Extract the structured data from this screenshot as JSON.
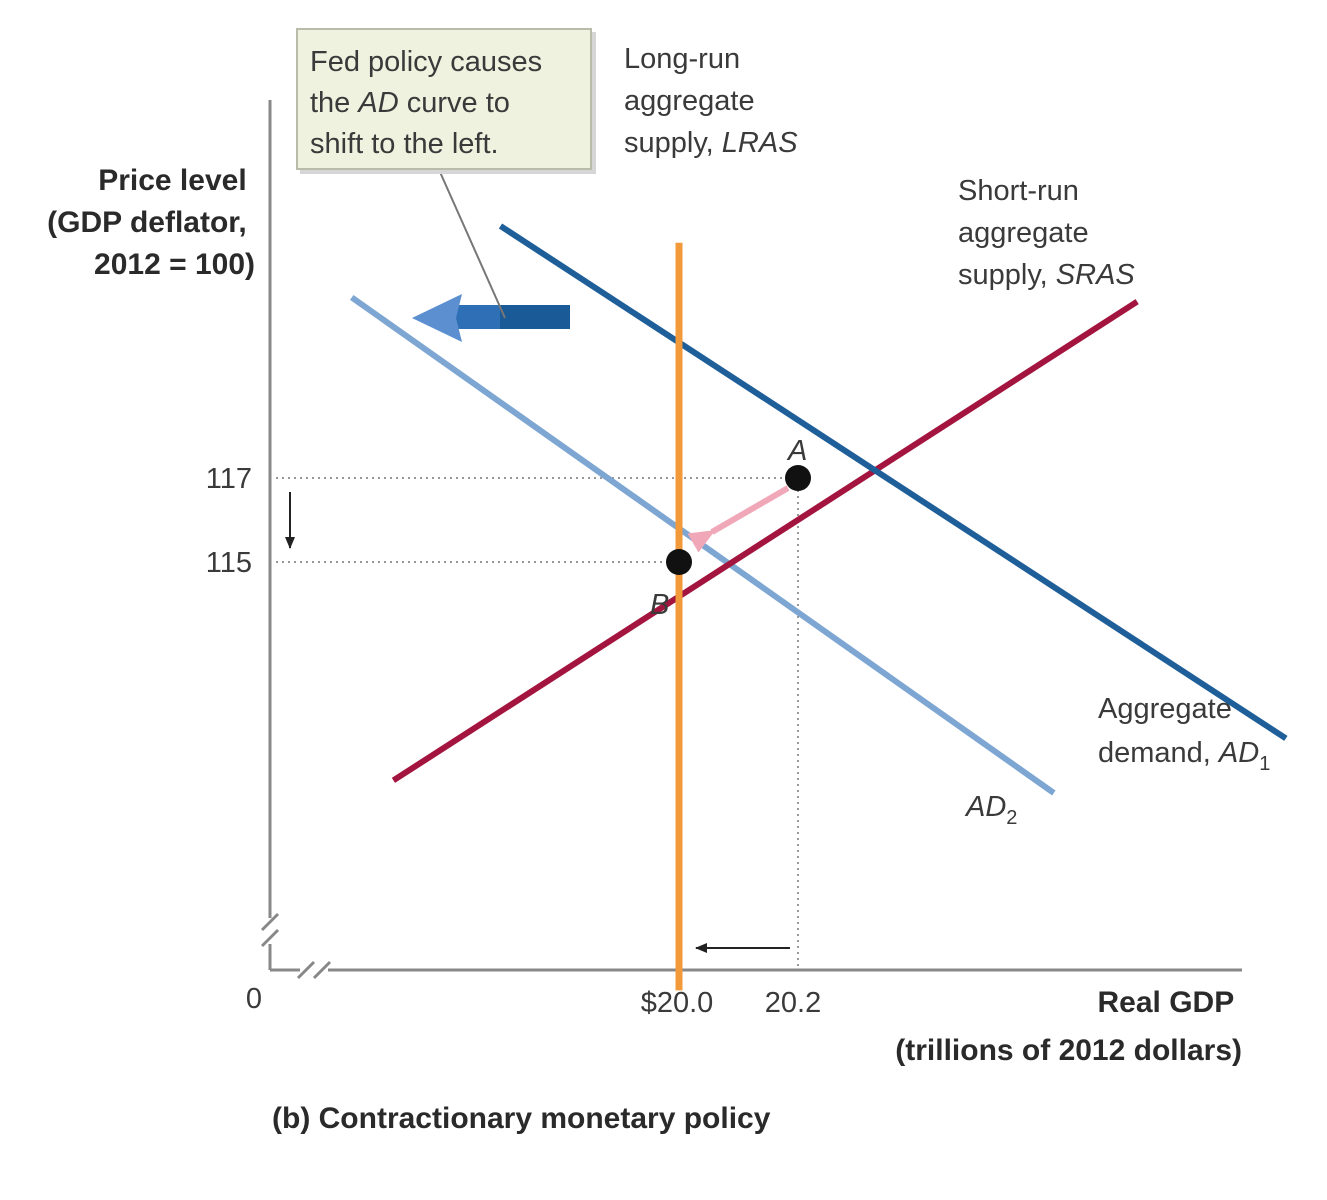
{
  "callout": {
    "line1": "Fed policy causes",
    "line2_pre": "the ",
    "line2_ital": "AD",
    "line2_post": " curve to",
    "line3": "shift to the left."
  },
  "chart_data": {
    "type": "line",
    "caption": "(b) Contractionary monetary policy",
    "ylabel": [
      "Price level",
      "(GDP deflator,",
      "2012 = 100)"
    ],
    "xlabel": [
      "Real GDP",
      "(trillions of 2012 dollars)"
    ],
    "origin_label": "0",
    "y_ticks": [
      {
        "value": 115,
        "label": "115"
      },
      {
        "value": 117,
        "label": "117"
      }
    ],
    "x_ticks": [
      {
        "value": 20.0,
        "label": "$20.0"
      },
      {
        "value": 20.2,
        "label": "20.2"
      }
    ],
    "series": [
      {
        "id": "lras",
        "label_lines": [
          "Long-run",
          "aggregate",
          "supply, "
        ],
        "label_ital": "LRAS",
        "color": "#f29a3a",
        "points": [
          [
            20.0,
            122.6
          ],
          [
            20.0,
            104.8
          ]
        ]
      },
      {
        "id": "sras",
        "label_lines": [
          "Short-run",
          "aggregate",
          "supply, "
        ],
        "label_ital": "SRAS",
        "color": "#a3143f",
        "points": [
          [
            19.52,
            109.8
          ],
          [
            20.77,
            121.2
          ]
        ]
      },
      {
        "id": "ad1",
        "label_lines": [
          "Aggregate",
          "demand, "
        ],
        "label_ital": "AD",
        "label_sub": "1",
        "color": "#1f5f99",
        "points": [
          [
            19.7,
            123.0
          ],
          [
            21.02,
            110.8
          ]
        ]
      },
      {
        "id": "ad2",
        "label_ital": "AD",
        "label_sub": "2",
        "color": "#7ea6d3",
        "points": [
          [
            19.45,
            121.3
          ],
          [
            20.63,
            109.5
          ]
        ]
      }
    ],
    "points": [
      {
        "name": "A",
        "x": 20.2,
        "y": 117
      },
      {
        "name": "B",
        "x": 20.0,
        "y": 115
      }
    ]
  }
}
